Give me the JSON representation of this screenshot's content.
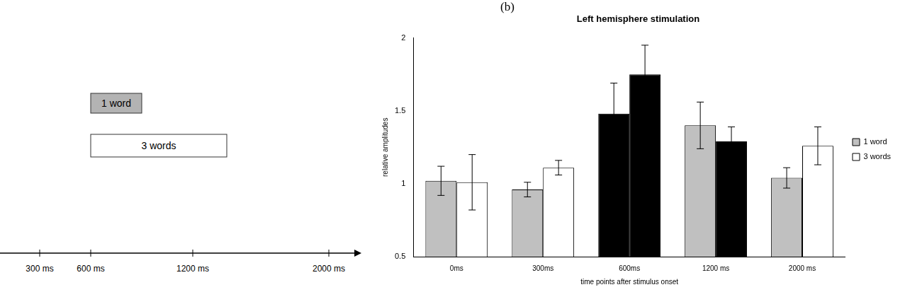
{
  "chart_data": {
    "type": "bar",
    "panel_label": "(b)",
    "title": "Left hemisphere stimulation",
    "x_label": "time points after stimulus onset",
    "y_label": "relative amplitudes",
    "categories": [
      "0ms",
      "300ms",
      "600ms",
      "1200 ms",
      "2000 ms"
    ],
    "series": [
      {
        "name": "1 word",
        "color": "#c0c0c0",
        "colors": [
          "#c0c0c0",
          "#c0c0c0",
          "#000000",
          "#c0c0c0",
          "#c0c0c0"
        ],
        "values": [
          1.02,
          0.96,
          1.48,
          1.4,
          1.04
        ],
        "errors": [
          0.1,
          0.05,
          0.21,
          0.16,
          0.07
        ]
      },
      {
        "name": "3 words",
        "color": "#ffffff",
        "colors": [
          "#ffffff",
          "#ffffff",
          "#000000",
          "#000000",
          "#ffffff"
        ],
        "values": [
          1.01,
          1.11,
          1.75,
          1.29,
          1.26
        ],
        "errors": [
          0.19,
          0.05,
          0.2,
          0.1,
          0.13
        ]
      }
    ],
    "ylim": [
      0.5,
      2
    ],
    "yticks": [
      0.5,
      1,
      1.5,
      2
    ],
    "grid": false,
    "legend": "right"
  },
  "timeline": {
    "axis_ticks": [
      {
        "value": 300,
        "label": "300 ms"
      },
      {
        "value": 600,
        "label": "600 ms"
      },
      {
        "value": 1200,
        "label": "1200 ms"
      },
      {
        "value": 2000,
        "label": "2000 ms"
      }
    ],
    "boxes": [
      {
        "label": "1 word",
        "start": 600,
        "end": 900,
        "color": "#b3b3b3"
      },
      {
        "label": "3 words",
        "start": 600,
        "end": 1400,
        "color": "#ffffff"
      }
    ]
  }
}
